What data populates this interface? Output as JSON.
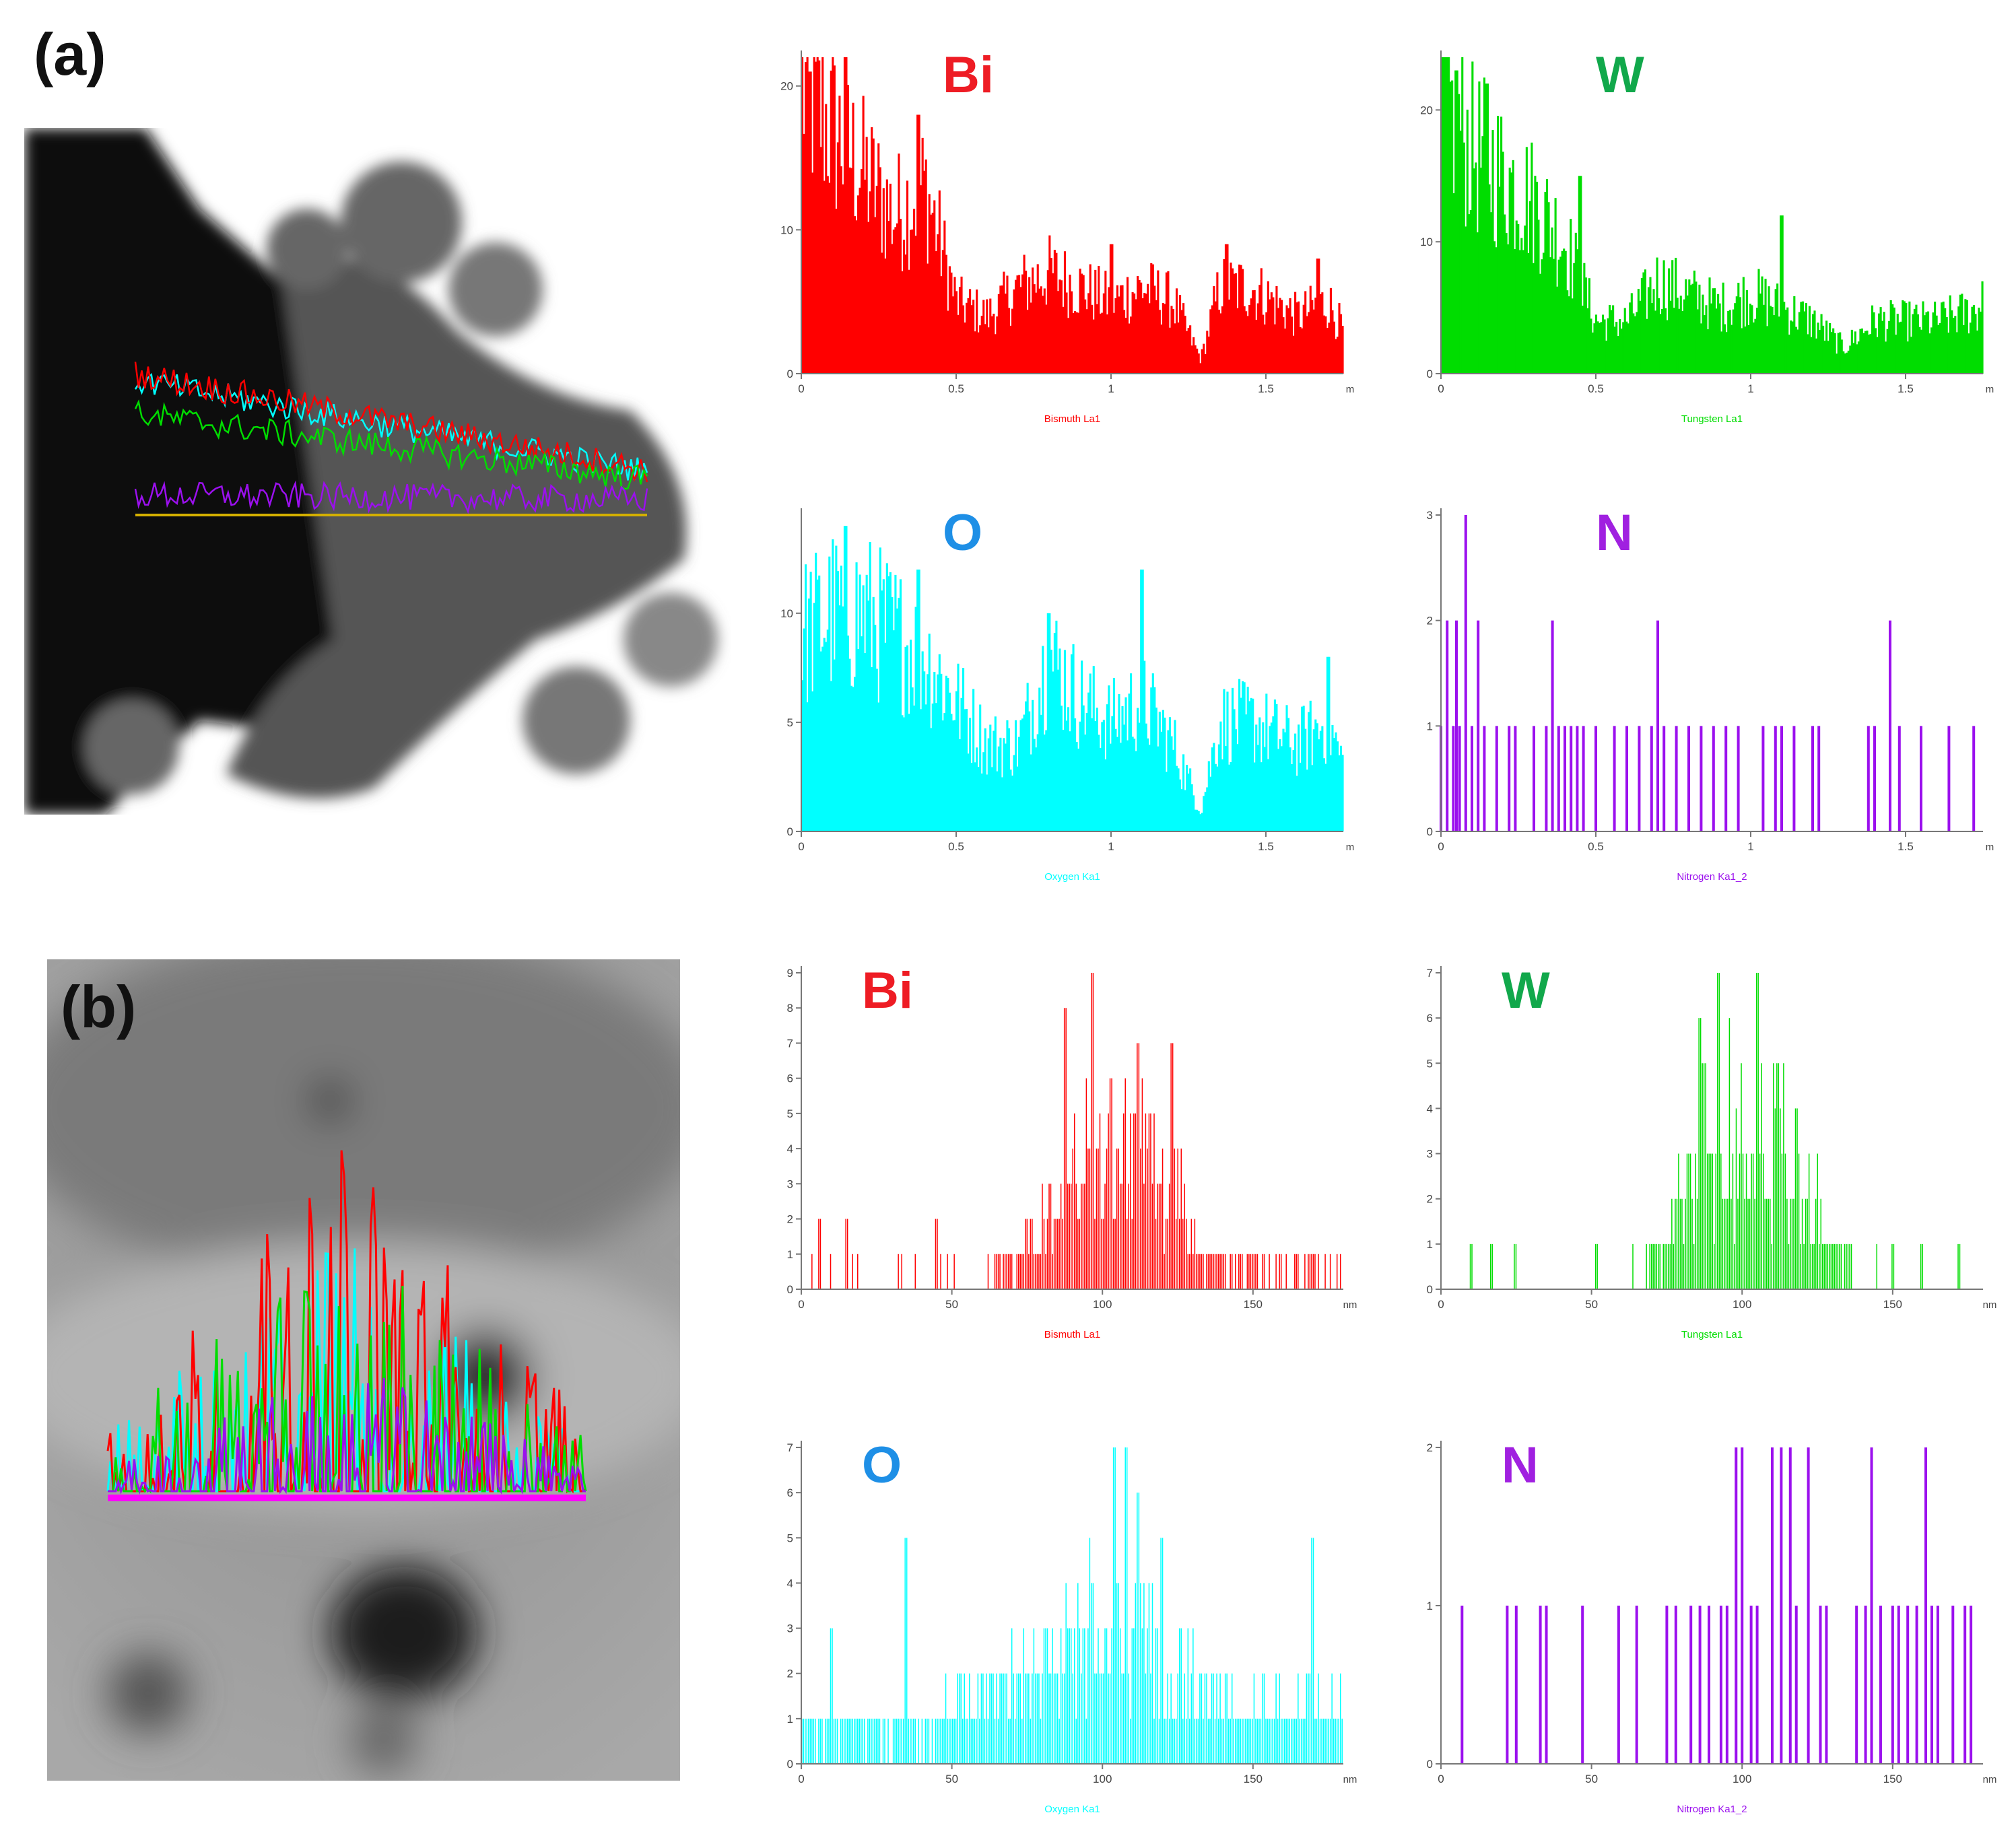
{
  "panels": {
    "a": "(a)",
    "b": "(b)"
  },
  "colors": {
    "Bi": "#ff0000",
    "W": "#00dd00",
    "O": "#00ffff",
    "N": "#9b10ee",
    "label_Bi": "#ee1c24",
    "label_W": "#11a84b",
    "label_O": "#1e8fe6",
    "label_N": "#a020e0",
    "line_scan_b": "#ff00ff"
  },
  "chart_data": [
    {
      "id": "a-Bi",
      "type": "bar",
      "element": "Bi",
      "xlabel": "Bismuth La1",
      "unit": "m",
      "xlim": [
        0,
        1.75
      ],
      "ylim": [
        0,
        22
      ],
      "xticks": [
        0,
        0.5,
        1,
        1.5
      ],
      "xtick_labels": [
        "0",
        "0.5",
        "1",
        "1.5"
      ],
      "yticks": [
        0,
        10,
        20
      ],
      "profile": [
        [
          0,
          20
        ],
        [
          0.1,
          17
        ],
        [
          0.2,
          14
        ],
        [
          0.3,
          11
        ],
        [
          0.4,
          13
        ],
        [
          0.5,
          5
        ],
        [
          0.6,
          4
        ],
        [
          0.7,
          6
        ],
        [
          0.8,
          7
        ],
        [
          0.9,
          6
        ],
        [
          1.0,
          5
        ],
        [
          1.1,
          6
        ],
        [
          1.2,
          5
        ],
        [
          1.29,
          1
        ],
        [
          1.35,
          6
        ],
        [
          1.45,
          6
        ],
        [
          1.6,
          4
        ],
        [
          1.7,
          5
        ],
        [
          1.75,
          3
        ]
      ],
      "peaks": [
        [
          0.03,
          21
        ],
        [
          0.14,
          22
        ],
        [
          0.38,
          18
        ],
        [
          1.0,
          9
        ],
        [
          1.37,
          9
        ],
        [
          1.67,
          8
        ]
      ]
    },
    {
      "id": "a-W",
      "type": "bar",
      "element": "W",
      "xlabel": "Tungsten La1",
      "unit": "m",
      "xlim": [
        0,
        1.75
      ],
      "ylim": [
        0,
        24
      ],
      "xticks": [
        0,
        0.5,
        1,
        1.5
      ],
      "xtick_labels": [
        "0",
        "0.5",
        "1",
        "1.5"
      ],
      "yticks": [
        0,
        10,
        20
      ],
      "profile": [
        [
          0,
          21
        ],
        [
          0.1,
          17
        ],
        [
          0.2,
          15
        ],
        [
          0.3,
          13
        ],
        [
          0.4,
          10
        ],
        [
          0.5,
          4
        ],
        [
          0.6,
          4
        ],
        [
          0.7,
          7
        ],
        [
          0.8,
          6
        ],
        [
          0.9,
          5
        ],
        [
          1.0,
          6
        ],
        [
          1.1,
          5
        ],
        [
          1.2,
          4
        ],
        [
          1.3,
          2
        ],
        [
          1.4,
          4
        ],
        [
          1.5,
          4
        ],
        [
          1.6,
          4
        ],
        [
          1.75,
          5
        ]
      ],
      "peaks": [
        [
          0.05,
          23
        ],
        [
          0.15,
          22
        ],
        [
          0.45,
          15
        ],
        [
          1.1,
          12
        ],
        [
          1.75,
          7
        ]
      ]
    },
    {
      "id": "a-O",
      "type": "bar",
      "element": "O",
      "xlabel": "Oxygen Ka1",
      "unit": "m",
      "xlim": [
        0,
        1.75
      ],
      "ylim": [
        0,
        14.5
      ],
      "xticks": [
        0,
        0.5,
        1,
        1.5
      ],
      "xtick_labels": [
        "0",
        "0.5",
        "1",
        "1.5"
      ],
      "yticks": [
        0,
        5,
        10
      ],
      "profile": [
        [
          0,
          9
        ],
        [
          0.1,
          10
        ],
        [
          0.2,
          10
        ],
        [
          0.3,
          9
        ],
        [
          0.4,
          8
        ],
        [
          0.5,
          6
        ],
        [
          0.6,
          4
        ],
        [
          0.7,
          4
        ],
        [
          0.8,
          8
        ],
        [
          0.9,
          6
        ],
        [
          1.0,
          5
        ],
        [
          1.1,
          6
        ],
        [
          1.2,
          4
        ],
        [
          1.29,
          1
        ],
        [
          1.35,
          5
        ],
        [
          1.45,
          5
        ],
        [
          1.6,
          4
        ],
        [
          1.7,
          5
        ],
        [
          1.75,
          3
        ]
      ],
      "peaks": [
        [
          0.14,
          14
        ],
        [
          0.38,
          12
        ],
        [
          0.8,
          10
        ],
        [
          1.1,
          12
        ],
        [
          1.7,
          8
        ]
      ]
    },
    {
      "id": "a-N",
      "type": "bar",
      "element": "N",
      "xlabel": "Nitrogen Ka1_2",
      "unit": "m",
      "xlim": [
        0,
        1.75
      ],
      "ylim": [
        0,
        3
      ],
      "xticks": [
        0,
        0.5,
        1,
        1.5
      ],
      "xtick_labels": [
        "0",
        "0.5",
        "1",
        "1.5"
      ],
      "yticks": [
        0,
        1,
        2,
        3
      ],
      "counts": [
        [
          0.02,
          2
        ],
        [
          0.08,
          3
        ],
        [
          0.05,
          2
        ],
        [
          0.12,
          2
        ],
        [
          0.36,
          2
        ],
        [
          0.7,
          2
        ],
        [
          1.45,
          2
        ],
        [
          0.0,
          1
        ],
        [
          0.04,
          1
        ],
        [
          0.06,
          1
        ],
        [
          0.1,
          1
        ],
        [
          0.14,
          1
        ],
        [
          0.18,
          1
        ],
        [
          0.22,
          1
        ],
        [
          0.24,
          1
        ],
        [
          0.3,
          1
        ],
        [
          0.34,
          1
        ],
        [
          0.38,
          1
        ],
        [
          0.4,
          1
        ],
        [
          0.42,
          1
        ],
        [
          0.44,
          1
        ],
        [
          0.46,
          1
        ],
        [
          0.5,
          1
        ],
        [
          0.56,
          1
        ],
        [
          0.6,
          1
        ],
        [
          0.64,
          1
        ],
        [
          0.68,
          1
        ],
        [
          0.72,
          1
        ],
        [
          0.76,
          1
        ],
        [
          0.8,
          1
        ],
        [
          0.84,
          1
        ],
        [
          0.88,
          1
        ],
        [
          0.92,
          1
        ],
        [
          0.96,
          1
        ],
        [
          1.04,
          1
        ],
        [
          1.08,
          1
        ],
        [
          1.1,
          1
        ],
        [
          1.14,
          1
        ],
        [
          1.2,
          1
        ],
        [
          1.22,
          1
        ],
        [
          1.38,
          1
        ],
        [
          1.4,
          1
        ],
        [
          1.48,
          1
        ],
        [
          1.55,
          1
        ],
        [
          1.64,
          1
        ],
        [
          1.72,
          1
        ]
      ]
    },
    {
      "id": "b-Bi",
      "type": "bar",
      "element": "Bi",
      "xlabel": "Bismuth La1",
      "unit": "nm",
      "xlim": [
        0,
        180
      ],
      "ylim": [
        0,
        9
      ],
      "xticks": [
        0,
        50,
        100,
        150
      ],
      "xtick_labels": [
        "0",
        "50",
        "100",
        "150"
      ],
      "yticks": [
        0,
        1,
        2,
        3,
        4,
        5,
        6,
        7,
        8,
        9
      ],
      "profile": [
        [
          0,
          0.4
        ],
        [
          60,
          0.4
        ],
        [
          75,
          1
        ],
        [
          85,
          3
        ],
        [
          95,
          5
        ],
        [
          105,
          4
        ],
        [
          115,
          4
        ],
        [
          125,
          3
        ],
        [
          135,
          1
        ],
        [
          150,
          0.7
        ],
        [
          180,
          0.5
        ]
      ],
      "peaks": [
        [
          88,
          8
        ],
        [
          97,
          9
        ],
        [
          103,
          6
        ],
        [
          112,
          7
        ],
        [
          123,
          7
        ],
        [
          6,
          2
        ],
        [
          15,
          2
        ],
        [
          45,
          2
        ],
        [
          75,
          2
        ]
      ]
    },
    {
      "id": "b-W",
      "type": "bar",
      "element": "W",
      "xlabel": "Tungsten La1",
      "unit": "nm",
      "xlim": [
        0,
        180
      ],
      "ylim": [
        0,
        7
      ],
      "xticks": [
        0,
        50,
        100,
        150
      ],
      "xtick_labels": [
        "0",
        "50",
        "100",
        "150"
      ],
      "yticks": [
        0,
        1,
        2,
        3,
        4,
        5,
        6,
        7
      ],
      "profile": [
        [
          0,
          0
        ],
        [
          68,
          0.5
        ],
        [
          78,
          2
        ],
        [
          88,
          4
        ],
        [
          98,
          4
        ],
        [
          108,
          4
        ],
        [
          118,
          3
        ],
        [
          128,
          1.5
        ],
        [
          140,
          0.5
        ],
        [
          180,
          0
        ]
      ],
      "peaks": [
        [
          86,
          6
        ],
        [
          92,
          7
        ],
        [
          105,
          7
        ],
        [
          88,
          5
        ],
        [
          112,
          5
        ],
        [
          10,
          1
        ],
        [
          17,
          1
        ],
        [
          25,
          1
        ],
        [
          52,
          1
        ],
        [
          150,
          1
        ],
        [
          160,
          1
        ],
        [
          172,
          1
        ]
      ]
    },
    {
      "id": "b-O",
      "type": "bar",
      "element": "O",
      "xlabel": "Oxygen Ka1",
      "unit": "nm",
      "xlim": [
        0,
        180
      ],
      "ylim": [
        0,
        7
      ],
      "xticks": [
        0,
        50,
        100,
        150
      ],
      "xtick_labels": [
        "0",
        "50",
        "100",
        "150"
      ],
      "yticks": [
        0,
        1,
        2,
        3,
        4,
        5,
        6,
        7
      ],
      "profile": [
        [
          0,
          1
        ],
        [
          40,
          1
        ],
        [
          60,
          1.5
        ],
        [
          80,
          2.5
        ],
        [
          95,
          3.5
        ],
        [
          105,
          4
        ],
        [
          115,
          3
        ],
        [
          130,
          2
        ],
        [
          150,
          1.5
        ],
        [
          180,
          1.5
        ]
      ],
      "peaks": [
        [
          35,
          5
        ],
        [
          104,
          7
        ],
        [
          108,
          7
        ],
        [
          112,
          6
        ],
        [
          120,
          5
        ],
        [
          170,
          5
        ],
        [
          10,
          3
        ]
      ]
    },
    {
      "id": "b-N",
      "type": "bar",
      "element": "N",
      "xlabel": "Nitrogen Ka1_2",
      "unit": "nm",
      "xlim": [
        0,
        180
      ],
      "ylim": [
        0,
        2
      ],
      "xticks": [
        0,
        50,
        100,
        150
      ],
      "xtick_labels": [
        "0",
        "50",
        "100",
        "150"
      ],
      "yticks": [
        0,
        1,
        2
      ],
      "counts": [
        [
          98,
          2
        ],
        [
          100,
          2
        ],
        [
          110,
          2
        ],
        [
          113,
          2
        ],
        [
          116,
          2
        ],
        [
          122,
          2
        ],
        [
          143,
          2
        ],
        [
          161,
          2
        ],
        [
          7,
          1
        ],
        [
          22,
          1
        ],
        [
          25,
          1
        ],
        [
          33,
          1
        ],
        [
          35,
          1
        ],
        [
          47,
          1
        ],
        [
          59,
          1
        ],
        [
          65,
          1
        ],
        [
          75,
          1
        ],
        [
          78,
          1
        ],
        [
          83,
          1
        ],
        [
          86,
          1
        ],
        [
          89,
          1
        ],
        [
          93,
          1
        ],
        [
          95,
          1
        ],
        [
          103,
          1
        ],
        [
          105,
          1
        ],
        [
          118,
          1
        ],
        [
          126,
          1
        ],
        [
          128,
          1
        ],
        [
          138,
          1
        ],
        [
          141,
          1
        ],
        [
          146,
          1
        ],
        [
          150,
          1
        ],
        [
          152,
          1
        ],
        [
          155,
          1
        ],
        [
          158,
          1
        ],
        [
          163,
          1
        ],
        [
          165,
          1
        ],
        [
          170,
          1
        ],
        [
          174,
          1
        ],
        [
          176,
          1
        ]
      ]
    }
  ]
}
